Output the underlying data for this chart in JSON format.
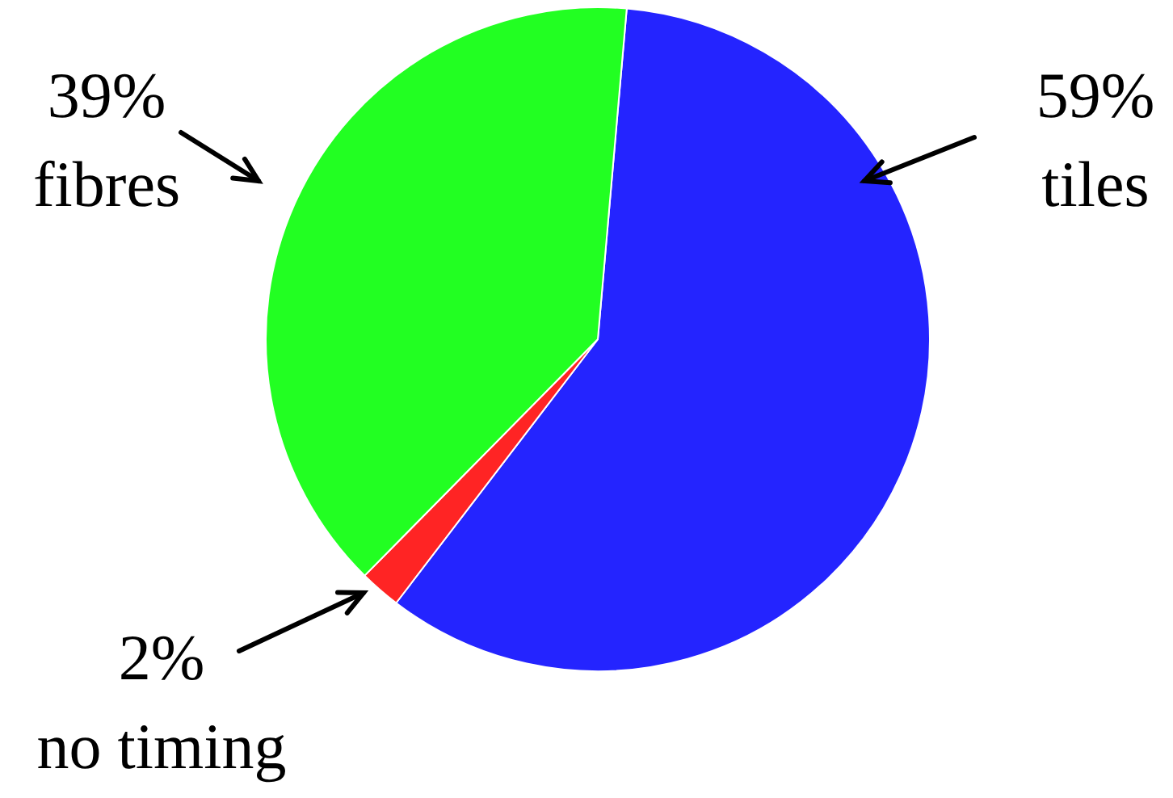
{
  "chart_data": {
    "type": "pie",
    "categories": [
      "tiles",
      "no timing",
      "fibres"
    ],
    "values": [
      59,
      2,
      39
    ],
    "colors": [
      "#2424ff",
      "#ff2424",
      "#22ff22"
    ],
    "value_labels": [
      "59%",
      "2%",
      "39%"
    ],
    "legend": false
  }
}
